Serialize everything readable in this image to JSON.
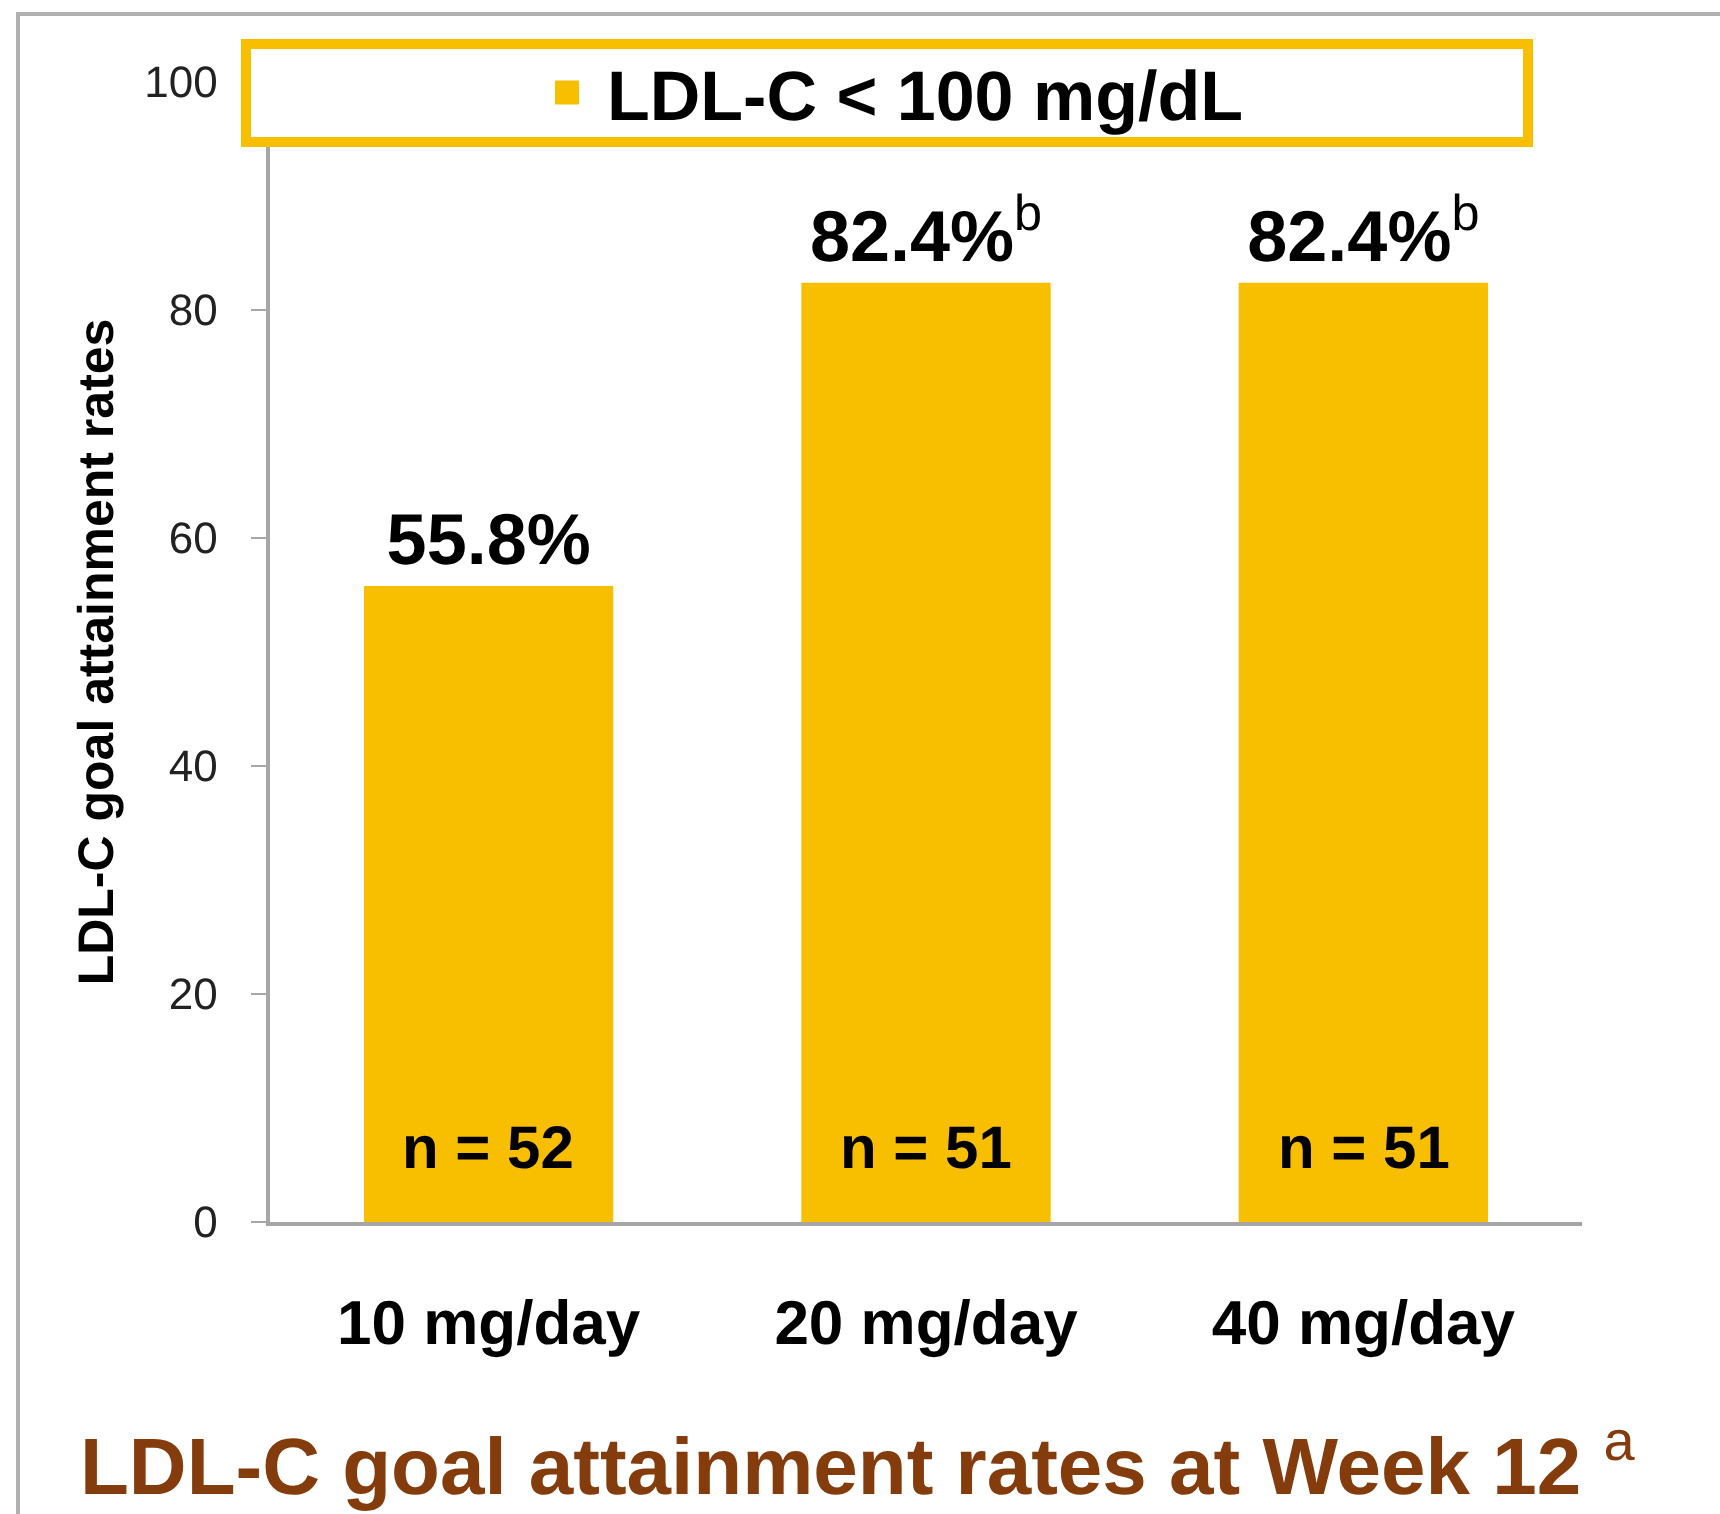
{
  "chart_data": {
    "type": "bar",
    "title": "LDL-C goal attainment rates at Week 12 $^{a}$",
    "ylabel": "LDL-C goal attainment rates",
    "categories": [
      "10 mg/day",
      "20 mg/day",
      "40 mg/day"
    ],
    "series": [
      {
        "name": "LDL-C < 100 mg/dL",
        "color": "#f8be00",
        "values": [
          55.8,
          82.4,
          82.4
        ],
        "value_labels": [
          "55.8%",
          "82.4%$^{b}$",
          "82.4%$^{b}$"
        ]
      }
    ],
    "ylim": [
      0,
      100
    ],
    "yticks": [
      0,
      20,
      40,
      60,
      80,
      100
    ],
    "legend": "top",
    "annotations": [
      "n = 52",
      "n = 51",
      "n = 51"
    ]
  }
}
